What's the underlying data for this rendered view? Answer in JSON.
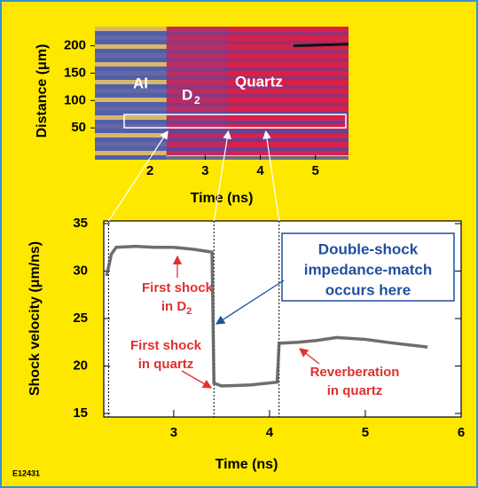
{
  "chart_data": [
    {
      "type": "image",
      "xlabel": "Time (ns)",
      "ylabel": "Distance (μm)",
      "xlim": [
        1.0,
        5.6
      ],
      "xticks": [
        2,
        3,
        4,
        5
      ],
      "ylim": [
        0,
        235
      ],
      "yticks": [
        50,
        100,
        150,
        200
      ],
      "region_labels": [
        "Al",
        "D",
        "Quartz"
      ],
      "region_label_sub": "2"
    },
    {
      "type": "line",
      "xlabel": "Time (ns)",
      "ylabel": "Shock velocity (μm/ns)",
      "xlim": [
        2.27,
        6
      ],
      "xticks": [
        3,
        4,
        5,
        6
      ],
      "ylim": [
        15,
        35
      ],
      "yticks": [
        15,
        20,
        25,
        30,
        35
      ],
      "color": "#555555",
      "x": [
        2.3,
        2.35,
        2.4,
        2.6,
        2.8,
        3.0,
        3.2,
        3.4,
        3.42,
        3.5,
        3.8,
        4.08,
        4.1,
        4.3,
        4.5,
        4.7,
        5.0,
        5.3,
        5.65
      ],
      "values": [
        29.5,
        31.8,
        32.5,
        32.6,
        32.5,
        32.5,
        32.3,
        32.0,
        18.2,
        17.9,
        18.0,
        18.3,
        22.4,
        22.5,
        22.7,
        23.0,
        22.8,
        22.4,
        22.0
      ],
      "vlines": [
        2.32,
        3.42,
        4.1
      ],
      "annotations": [
        {
          "lines": [
            "First shock",
            "in D"
          ],
          "sub": "2"
        },
        {
          "lines": [
            "First shock",
            "in quartz"
          ]
        },
        {
          "lines": [
            "Reverberation",
            "in quartz"
          ]
        },
        {
          "lines": [
            "Double-shock",
            "impedance-match",
            "occurs here"
          ]
        }
      ]
    }
  ],
  "figure_id": "E12431"
}
